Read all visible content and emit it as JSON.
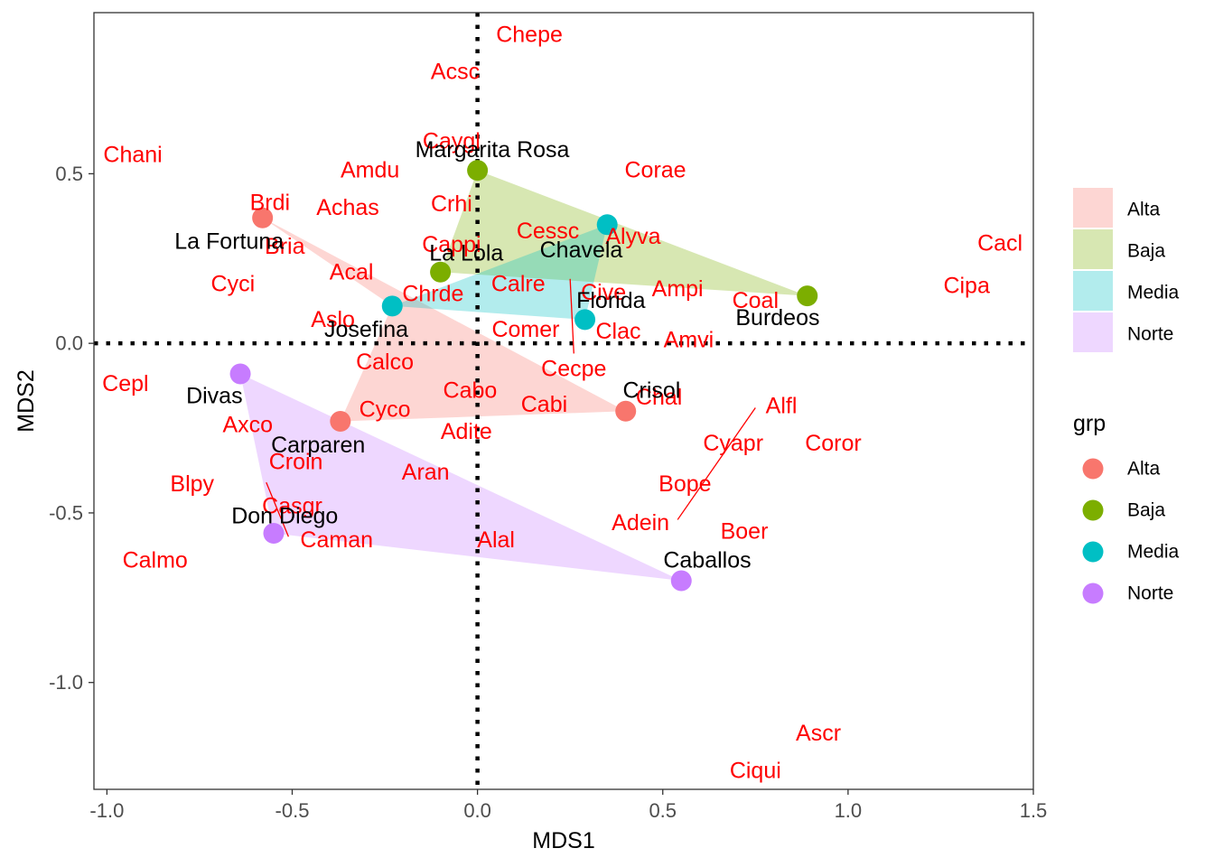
{
  "chart_data": {
    "type": "scatter",
    "xlabel": "MDS1",
    "ylabel": "MDS2",
    "xlim": [
      -1.035,
      1.5
    ],
    "ylim": [
      -1.315,
      0.975
    ],
    "x_ticks": [
      -1.0,
      -0.5,
      0.0,
      0.5,
      1.0,
      1.5
    ],
    "x_tick_labels": [
      "-1.0",
      "-0.5",
      "0.0",
      "0.5",
      "1.0",
      "1.5"
    ],
    "y_ticks": [
      -1.0,
      -0.5,
      0.0,
      0.5
    ],
    "y_tick_labels": [
      "-1.0",
      "-0.5",
      "0.0",
      "0.5"
    ],
    "grid": false,
    "reference_lines": {
      "x": 0,
      "y": 0,
      "style": "dotted"
    },
    "legend_placement": "right",
    "groups": [
      {
        "name": "Alta",
        "color": "#F8766D"
      },
      {
        "name": "Baja",
        "color": "#7CAE00"
      },
      {
        "name": "Media",
        "color": "#00BFC4"
      },
      {
        "name": "Norte",
        "color": "#C77CFF"
      }
    ],
    "hull_legend_labels": [
      "Alta",
      "Baja",
      "Media",
      "Norte"
    ],
    "point_legend_title": "grp",
    "point_legend_labels": [
      "Alta",
      "Baja",
      "Media",
      "Norte"
    ],
    "hulls": [
      {
        "group": "Alta",
        "points": [
          [
            -0.58,
            0.37
          ],
          [
            0.4,
            -0.2
          ],
          [
            -0.37,
            -0.23
          ],
          [
            -0.23,
            0.11
          ]
        ]
      },
      {
        "group": "Baja",
        "points": [
          [
            0.0,
            0.51
          ],
          [
            0.89,
            0.14
          ],
          [
            -0.1,
            0.21
          ]
        ]
      },
      {
        "group": "Media",
        "points": [
          [
            0.35,
            0.35
          ],
          [
            0.29,
            0.07
          ],
          [
            -0.23,
            0.11
          ]
        ]
      },
      {
        "group": "Norte",
        "points": [
          [
            -0.64,
            -0.09
          ],
          [
            0.55,
            -0.7
          ],
          [
            -0.55,
            -0.56
          ]
        ]
      }
    ],
    "sites": [
      {
        "label": "La Fortuna",
        "group": "Alta",
        "x": -0.58,
        "y": 0.37,
        "lx": -0.67,
        "ly": 0.3
      },
      {
        "label": "Crisol",
        "group": "Alta",
        "x": 0.4,
        "y": -0.2,
        "lx": 0.47,
        "ly": -0.14
      },
      {
        "label": "Carparen",
        "group": "Alta",
        "x": -0.37,
        "y": -0.23,
        "lx": -0.43,
        "ly": -0.3
      },
      {
        "label": "Margarita Rosa",
        "group": "Baja",
        "x": 0.0,
        "y": 0.51,
        "lx": 0.04,
        "ly": 0.57
      },
      {
        "label": "La Lola",
        "group": "Baja",
        "x": -0.1,
        "y": 0.21,
        "lx": -0.03,
        "ly": 0.265
      },
      {
        "label": "Burdeos",
        "group": "Baja",
        "x": 0.89,
        "y": 0.14,
        "lx": 0.81,
        "ly": 0.075
      },
      {
        "label": "Chavela",
        "group": "Media",
        "x": 0.35,
        "y": 0.35,
        "lx": 0.28,
        "ly": 0.275
      },
      {
        "label": "Florida",
        "group": "Media",
        "x": 0.29,
        "y": 0.07,
        "lx": 0.36,
        "ly": 0.125
      },
      {
        "label": "Josefina",
        "group": "Media",
        "x": -0.23,
        "y": 0.11,
        "lx": -0.3,
        "ly": 0.04
      },
      {
        "label": "Divas",
        "group": "Norte",
        "x": -0.64,
        "y": -0.09,
        "lx": -0.71,
        "ly": -0.155
      },
      {
        "label": "Don Diego",
        "group": "Norte",
        "x": -0.55,
        "y": -0.56,
        "lx": -0.52,
        "ly": -0.51
      },
      {
        "label": "Caballos",
        "group": "Norte",
        "x": 0.55,
        "y": -0.7,
        "lx": 0.62,
        "ly": -0.64
      }
    ],
    "species": [
      {
        "label": "Chepe",
        "x": 0.14,
        "y": 0.91
      },
      {
        "label": "Acsc",
        "x": -0.06,
        "y": 0.8
      },
      {
        "label": "Chani",
        "x": -0.93,
        "y": 0.555
      },
      {
        "label": "Caygl",
        "x": -0.07,
        "y": 0.595
      },
      {
        "label": "Amdu",
        "x": -0.29,
        "y": 0.51
      },
      {
        "label": "Corae",
        "x": 0.48,
        "y": 0.51
      },
      {
        "label": "Brdi",
        "x": -0.56,
        "y": 0.415
      },
      {
        "label": "Achas",
        "x": -0.35,
        "y": 0.4
      },
      {
        "label": "Crhi",
        "x": -0.07,
        "y": 0.41
      },
      {
        "label": "Cessc",
        "x": 0.19,
        "y": 0.33
      },
      {
        "label": "Alyva",
        "x": 0.42,
        "y": 0.315
      },
      {
        "label": "Bria",
        "x": -0.52,
        "y": 0.285
      },
      {
        "label": "Cappi",
        "x": -0.07,
        "y": 0.29
      },
      {
        "label": "Cacl",
        "x": 1.41,
        "y": 0.295
      },
      {
        "label": "Acal",
        "x": -0.34,
        "y": 0.21
      },
      {
        "label": "Cipa",
        "x": 1.32,
        "y": 0.17
      },
      {
        "label": "Cyci",
        "x": -0.66,
        "y": 0.175
      },
      {
        "label": "Calre",
        "x": 0.11,
        "y": 0.175
      },
      {
        "label": "Ampi",
        "x": 0.54,
        "y": 0.16
      },
      {
        "label": "Chrde",
        "x": -0.12,
        "y": 0.145
      },
      {
        "label": "Cive",
        "x": 0.34,
        "y": 0.15
      },
      {
        "label": "Coal",
        "x": 0.75,
        "y": 0.125
      },
      {
        "label": "Aslo",
        "x": -0.39,
        "y": 0.07
      },
      {
        "label": "Comer",
        "x": 0.13,
        "y": 0.04
      },
      {
        "label": "Clac",
        "x": 0.38,
        "y": 0.035
      },
      {
        "label": "Amvi",
        "x": 0.57,
        "y": 0.01
      },
      {
        "label": "Calco",
        "x": -0.25,
        "y": -0.055
      },
      {
        "label": "Cecpe",
        "x": 0.26,
        "y": -0.075
      },
      {
        "label": "Cepl",
        "x": -0.95,
        "y": -0.12
      },
      {
        "label": "Cabo",
        "x": -0.02,
        "y": -0.14
      },
      {
        "label": "Chal",
        "x": 0.49,
        "y": -0.16
      },
      {
        "label": "Cabi",
        "x": 0.18,
        "y": -0.18
      },
      {
        "label": "Alfl",
        "x": 0.82,
        "y": -0.185
      },
      {
        "label": "Cyco",
        "x": -0.25,
        "y": -0.195
      },
      {
        "label": "Axco",
        "x": -0.62,
        "y": -0.24
      },
      {
        "label": "Adite",
        "x": -0.03,
        "y": -0.26
      },
      {
        "label": "Cyapr",
        "x": 0.69,
        "y": -0.295
      },
      {
        "label": "Coror",
        "x": 0.96,
        "y": -0.295
      },
      {
        "label": "Croin",
        "x": -0.49,
        "y": -0.35
      },
      {
        "label": "Aran",
        "x": -0.14,
        "y": -0.38
      },
      {
        "label": "Blpy",
        "x": -0.77,
        "y": -0.415
      },
      {
        "label": "Bope",
        "x": 0.56,
        "y": -0.415
      },
      {
        "label": "Casgr",
        "x": -0.5,
        "y": -0.48
      },
      {
        "label": "Adein",
        "x": 0.44,
        "y": -0.53
      },
      {
        "label": "Boer",
        "x": 0.72,
        "y": -0.555
      },
      {
        "label": "Caman",
        "x": -0.38,
        "y": -0.58
      },
      {
        "label": "Alal",
        "x": 0.05,
        "y": -0.58
      },
      {
        "label": "Calmo",
        "x": -0.87,
        "y": -0.64
      },
      {
        "label": "Ascr",
        "x": 0.92,
        "y": -1.15
      },
      {
        "label": "Ciqui",
        "x": 0.75,
        "y": -1.26
      }
    ],
    "leader_lines": [
      [
        [
          0.25,
          0.19
        ],
        [
          0.26,
          -0.03
        ]
      ],
      [
        [
          0.54,
          -0.52
        ],
        [
          0.75,
          -0.19
        ]
      ],
      [
        [
          -0.57,
          -0.41
        ],
        [
          -0.51,
          -0.57
        ]
      ]
    ]
  }
}
